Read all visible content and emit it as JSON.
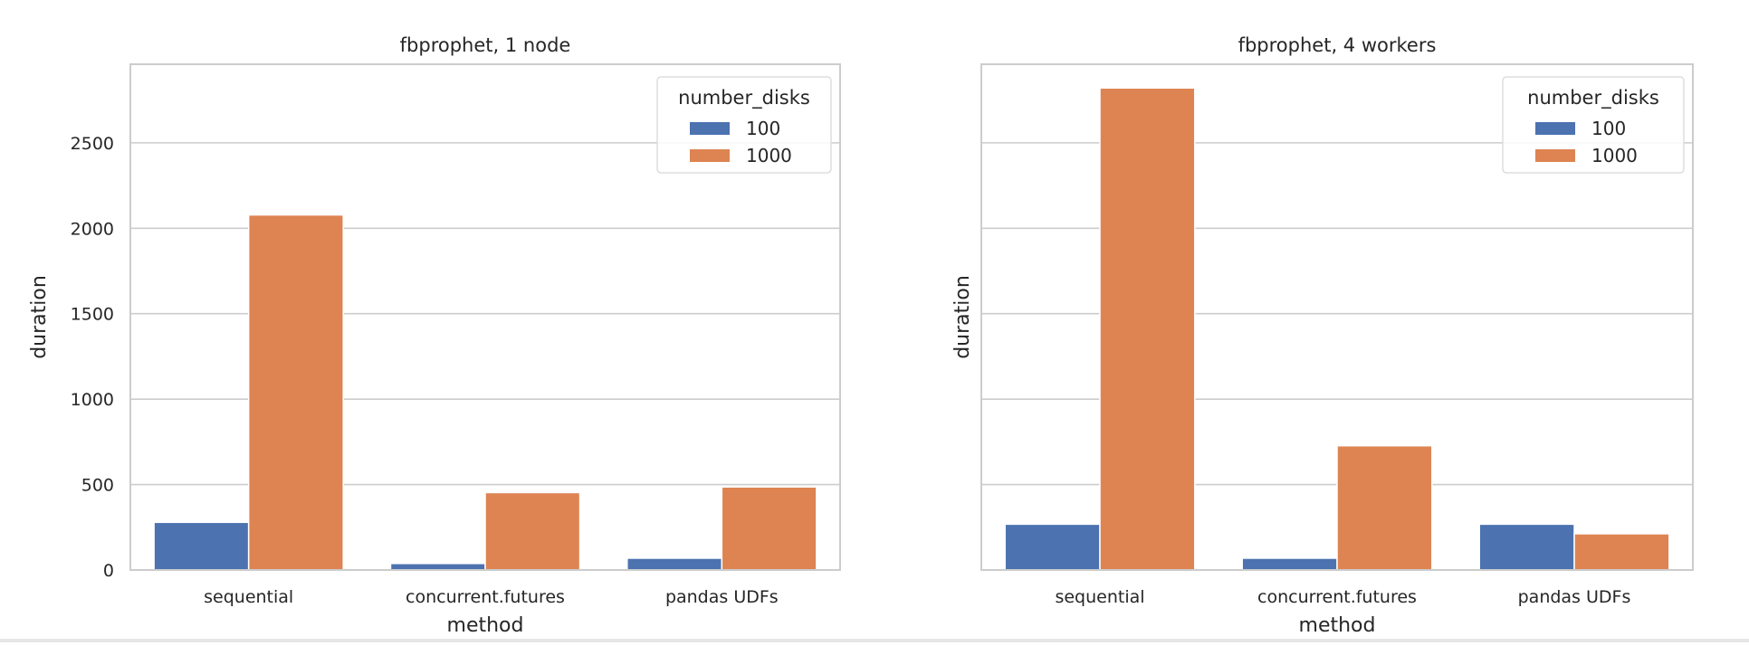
{
  "chart_data": [
    {
      "type": "bar",
      "title": "fbprophet, 1 node",
      "xlabel": "method",
      "ylabel": "duration",
      "categories": [
        "sequential",
        "concurrent.futures",
        "pandas UDFs"
      ],
      "series": [
        {
          "name": "100",
          "color": "#4c72b0",
          "values": [
            279,
            38,
            69
          ]
        },
        {
          "name": "1000",
          "color": "#dd8452",
          "values": [
            2078,
            453,
            486
          ]
        }
      ],
      "legend_title": "number_disks",
      "legend_position": "top-right",
      "ylim": [
        0,
        2960
      ],
      "yticks": [
        "0",
        "500",
        "1000",
        "1500",
        "2000",
        "2500"
      ],
      "grid": true
    },
    {
      "type": "bar",
      "title": "fbprophet, 4 workers",
      "xlabel": "method",
      "ylabel": "duration",
      "categories": [
        "sequential",
        "concurrent.futures",
        "pandas UDFs"
      ],
      "series": [
        {
          "name": "100",
          "color": "#4c72b0",
          "values": [
            268,
            69,
            268
          ]
        },
        {
          "name": "1000",
          "color": "#dd8452",
          "values": [
            2821,
            727,
            212
          ]
        }
      ],
      "legend_title": "number_disks",
      "legend_position": "top-right",
      "ylim": [
        0,
        2960
      ],
      "yticks": [],
      "grid": true
    }
  ]
}
